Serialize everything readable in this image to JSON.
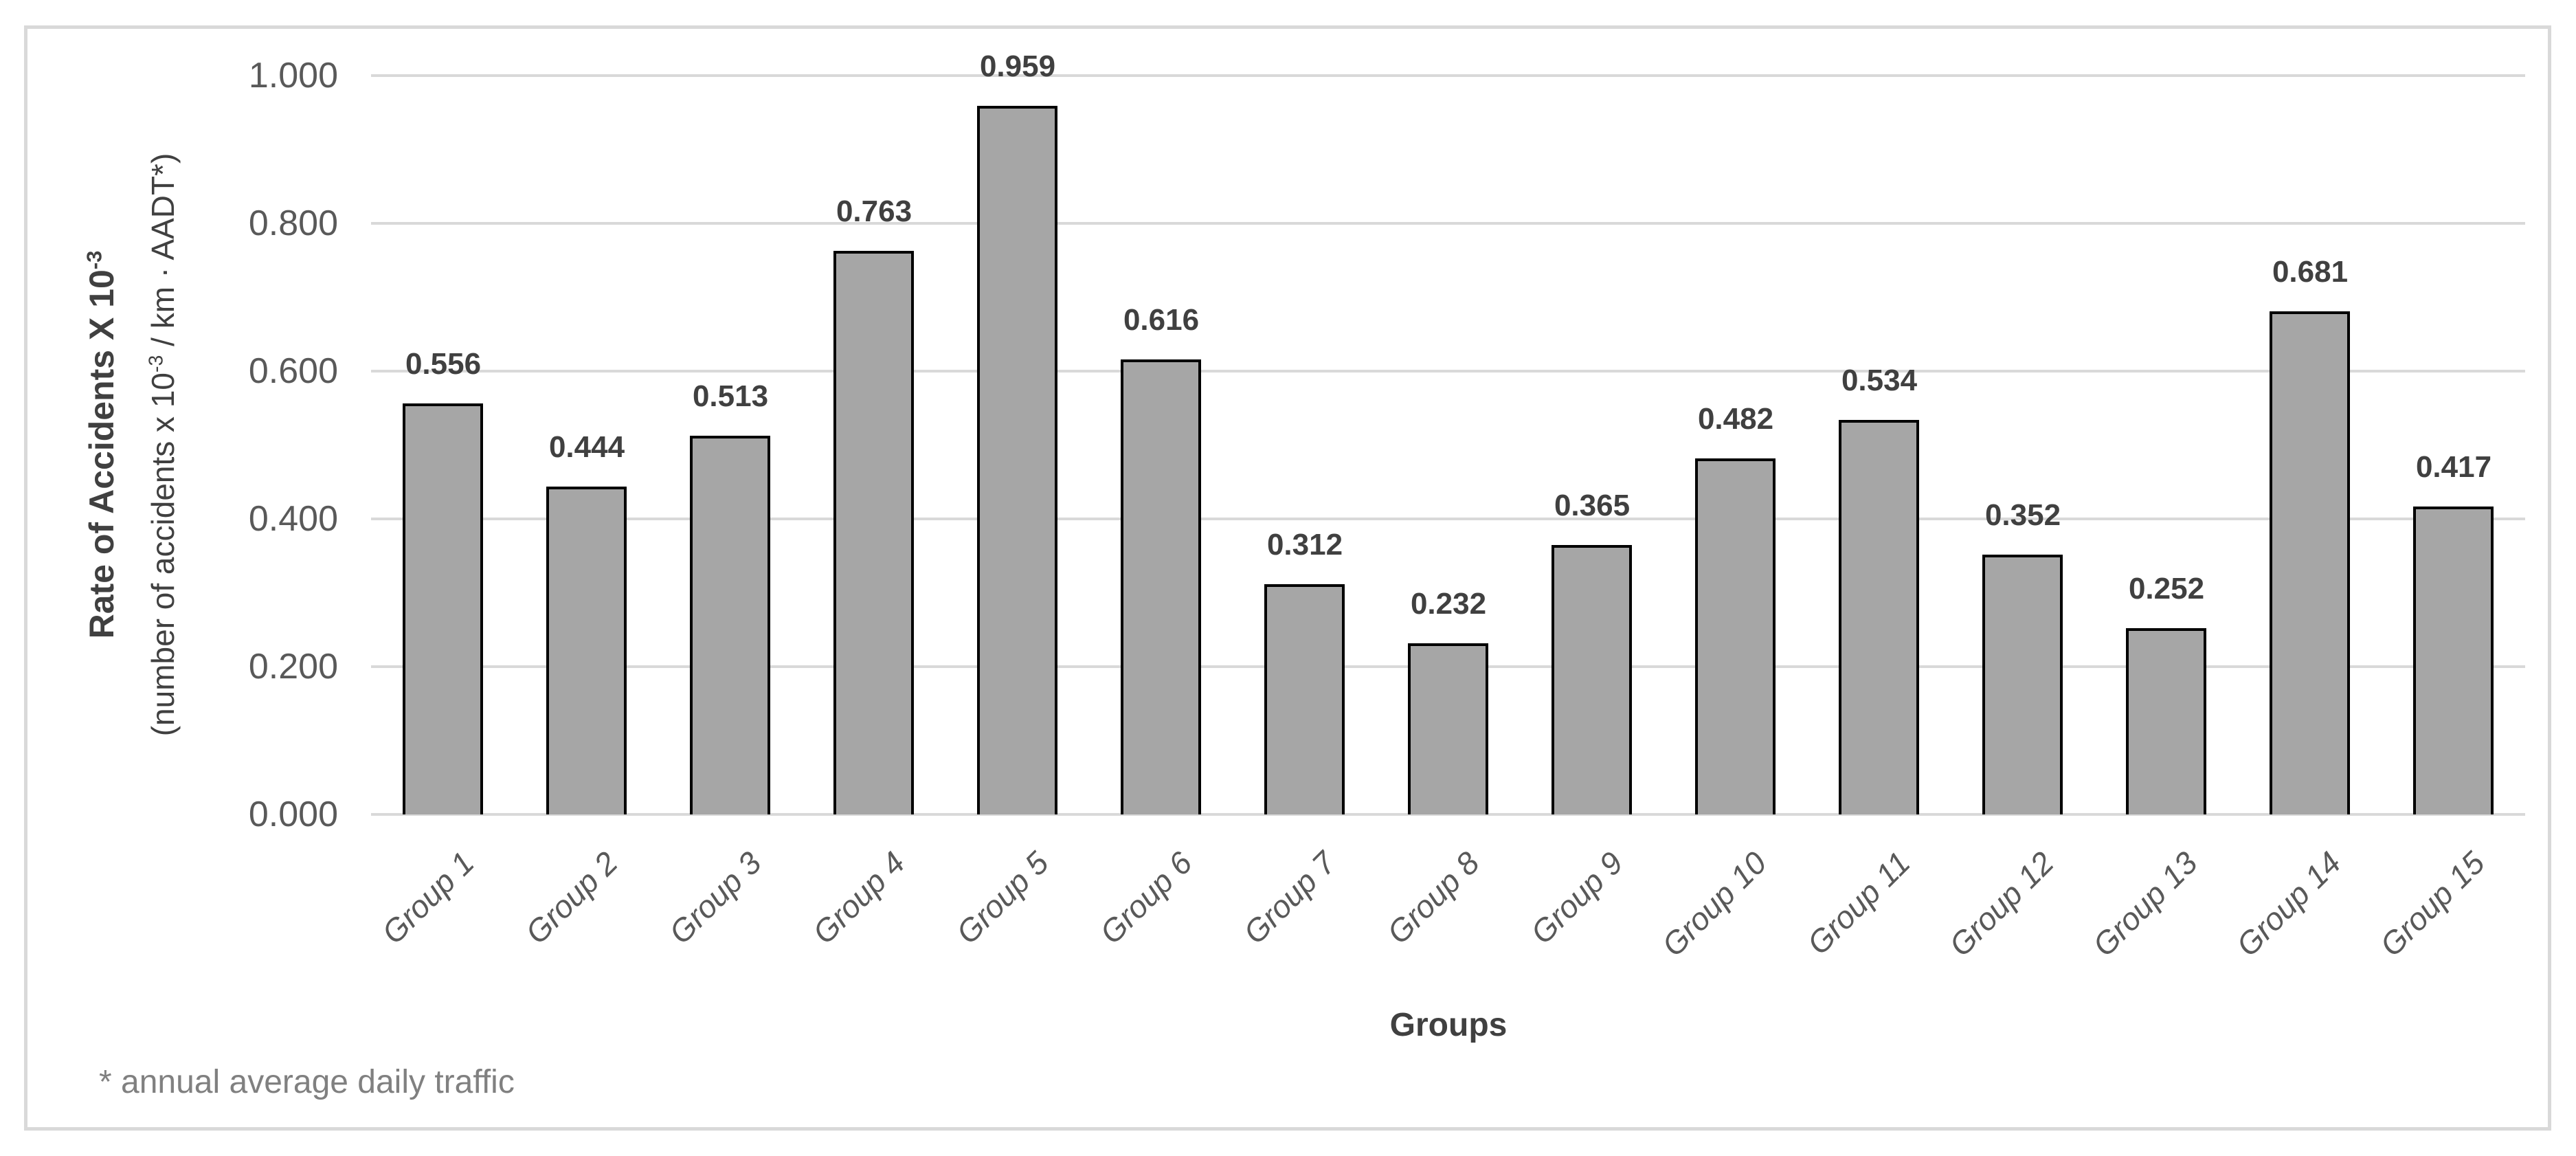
{
  "chart_data": {
    "type": "bar",
    "title": "",
    "categories": [
      "Group 1",
      "Group 2",
      "Group 3",
      "Group 4",
      "Group 5",
      "Group 6",
      "Group 7",
      "Group 8",
      "Group 9",
      "Group 10",
      "Group 11",
      "Group 12",
      "Group 13",
      "Group 14",
      "Group 15"
    ],
    "values": [
      0.556,
      0.444,
      0.513,
      0.763,
      0.959,
      0.616,
      0.312,
      0.232,
      0.365,
      0.482,
      0.534,
      0.352,
      0.252,
      0.681,
      0.417
    ],
    "value_labels": [
      "0.556",
      "0.444",
      "0.513",
      "0.763",
      "0.959",
      "0.616",
      "0.312",
      "0.232",
      "0.365",
      "0.482",
      "0.534",
      "0.352",
      "0.252",
      "0.681",
      "0.417"
    ],
    "xlabel": "Groups",
    "ylabel_main": "Rate of Accidents X 10",
    "ylabel_exp": "-3",
    "ylabel_sub_pre": "(number of accidents x 10",
    "ylabel_sub_exp": "-3",
    "ylabel_sub_post": " / km · AADT*)",
    "y_ticks": [
      "0.000",
      "0.200",
      "0.400",
      "0.600",
      "0.800",
      "1.000"
    ],
    "ylim": [
      0,
      1.0
    ],
    "grid": "horizontal",
    "legend": "none",
    "footnote": "* annual average daily traffic",
    "colors": {
      "bar_fill": "#A6A6A6",
      "bar_border": "#000000",
      "gridline": "#D9D9D9",
      "frame_border": "#D9D9D9",
      "tick_label": "#595959",
      "data_label": "#404040",
      "axis_title": "#404040",
      "footnote": "#808080"
    }
  }
}
